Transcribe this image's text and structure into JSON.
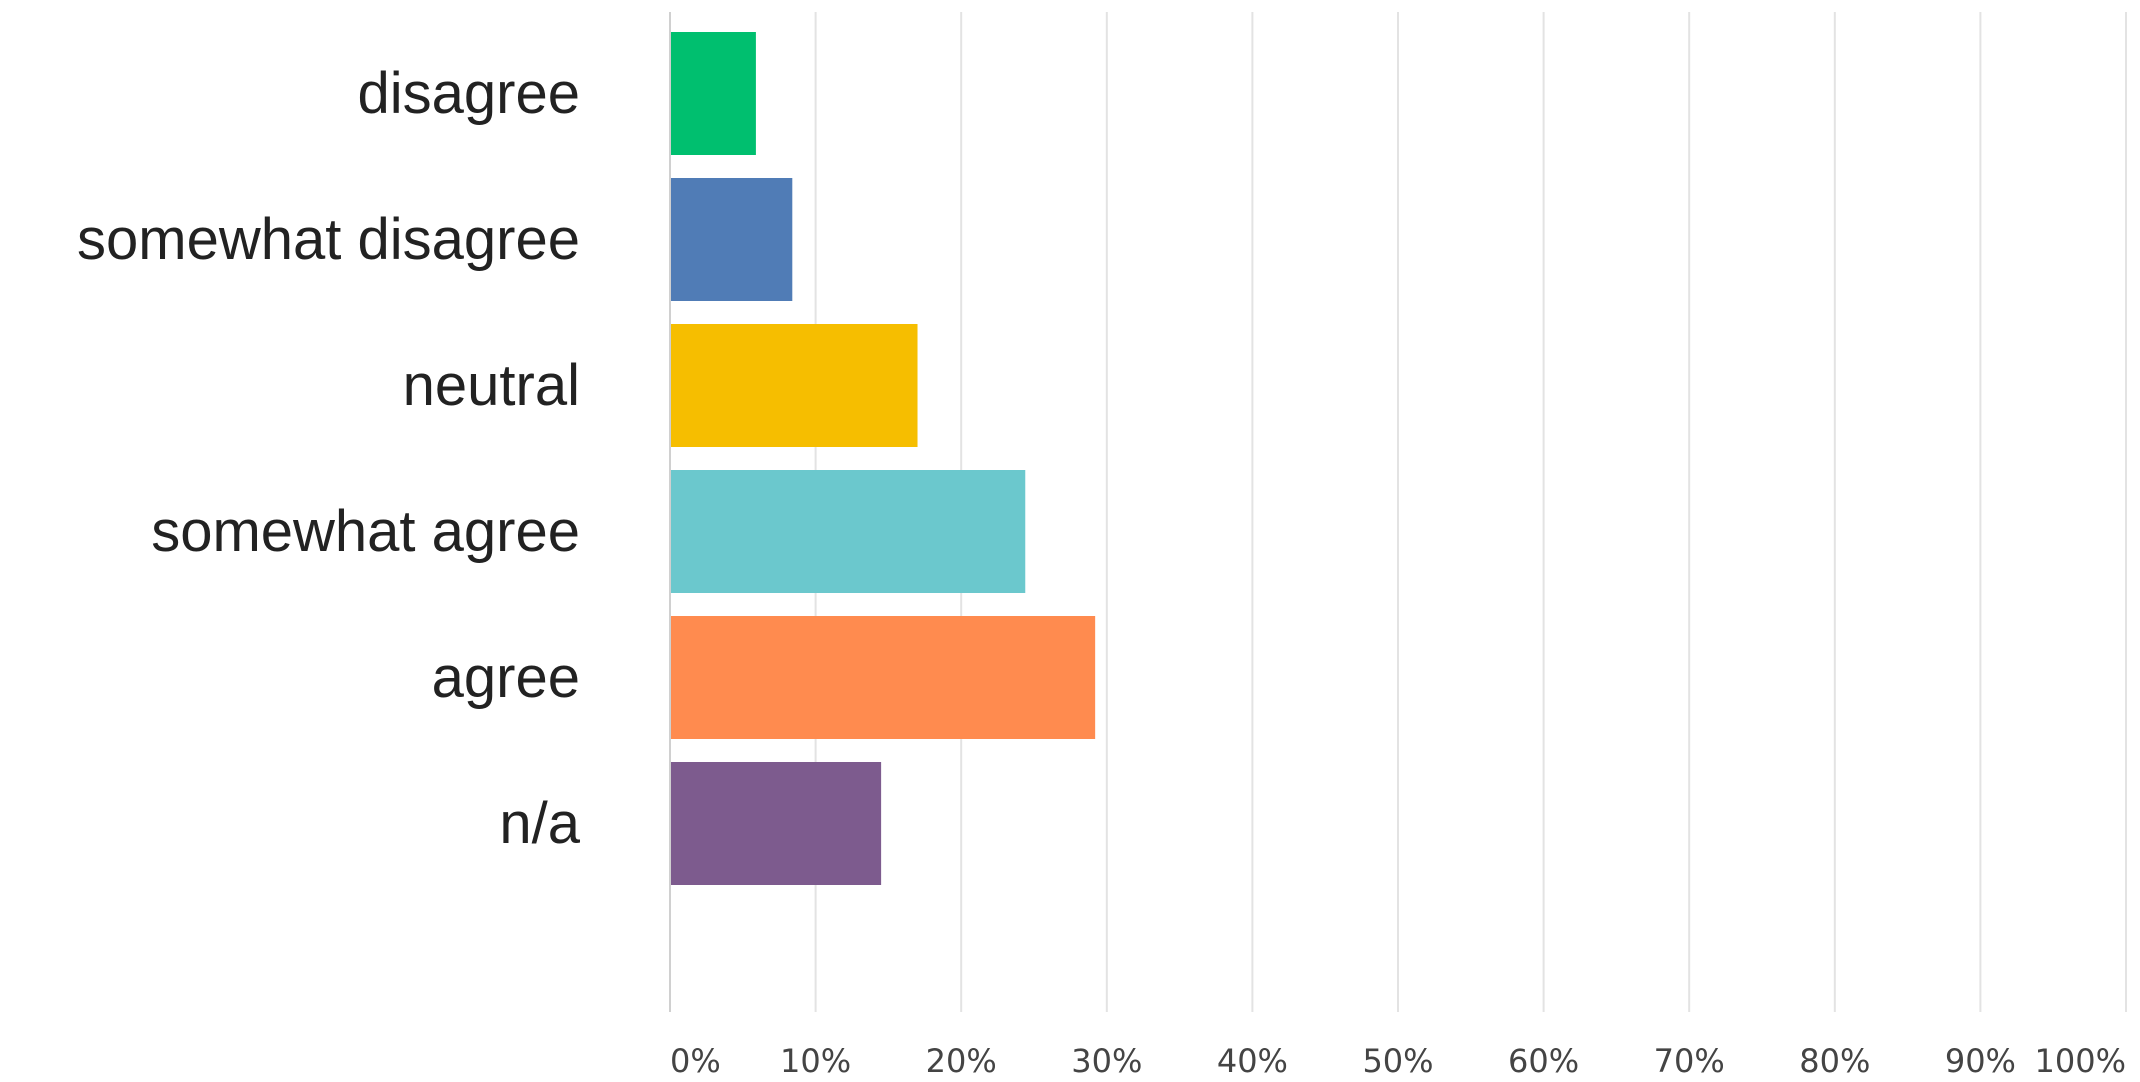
{
  "chart_data": {
    "type": "bar",
    "orientation": "horizontal",
    "categories": [
      "disagree",
      "somewhat disagree",
      "neutral",
      "somewhat agree",
      "agree",
      "n/a"
    ],
    "values": [
      5.9,
      8.4,
      17.0,
      24.4,
      29.2,
      14.5
    ],
    "unit": "%",
    "xlim": [
      0,
      100
    ],
    "x_ticks": [
      "0%",
      "10%",
      "20%",
      "30%",
      "40%",
      "50%",
      "60%",
      "70%",
      "80%",
      "90%",
      "100%"
    ],
    "bar_colors": [
      "#00bf6f",
      "#507cb6",
      "#f6be00",
      "#6bc8cd",
      "#ff8b4f",
      "#7d5b8e"
    ],
    "grid": true,
    "legend": "none",
    "title": "",
    "xlabel": "",
    "ylabel": ""
  }
}
